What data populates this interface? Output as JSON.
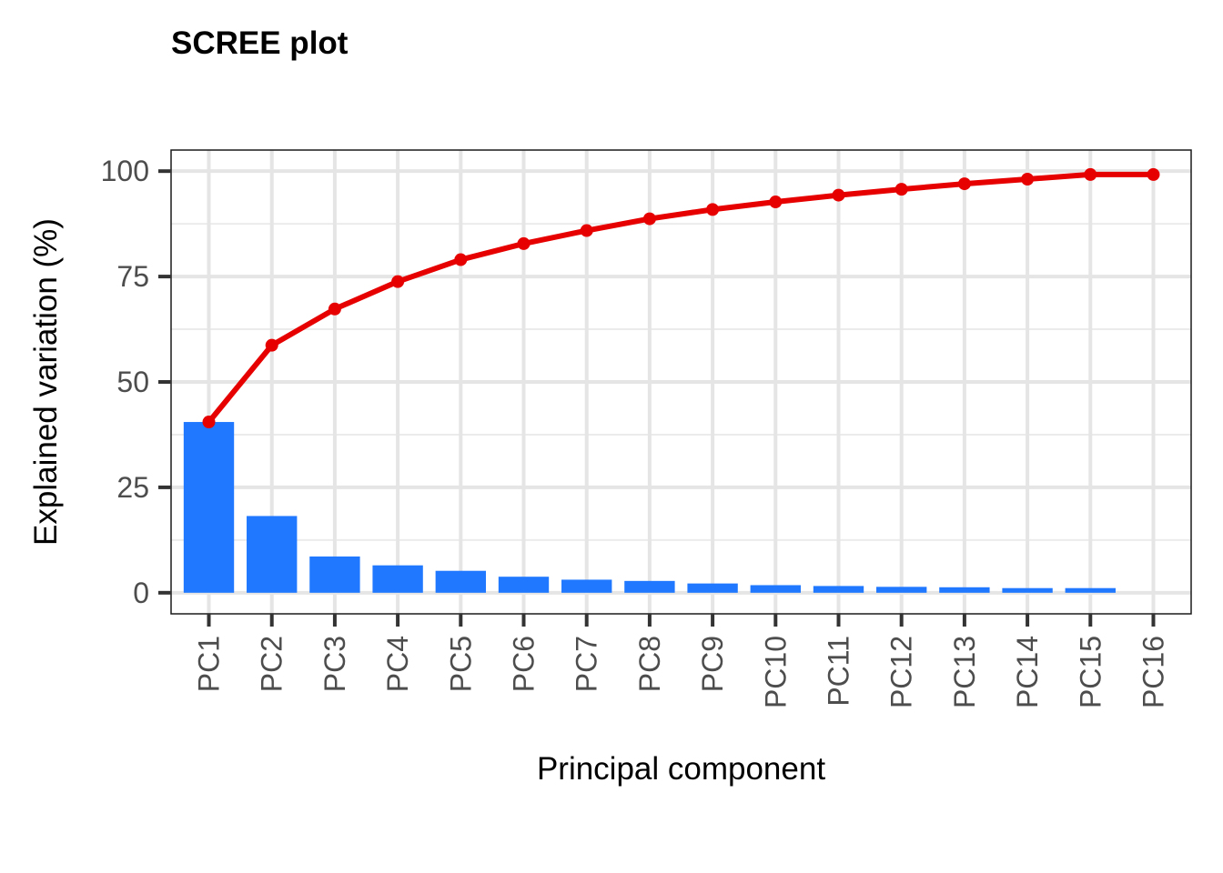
{
  "chart_data": {
    "type": "bar",
    "title": "SCREE plot",
    "xlabel": "Principal component",
    "ylabel": "Explained variation (%)",
    "categories": [
      "PC1",
      "PC2",
      "PC3",
      "PC4",
      "PC5",
      "PC6",
      "PC7",
      "PC8",
      "PC9",
      "PC10",
      "PC11",
      "PC12",
      "PC13",
      "PC14",
      "PC15",
      "PC16"
    ],
    "series": [
      {
        "type": "bar",
        "values": [
          40.5,
          18.2,
          8.6,
          6.5,
          5.2,
          3.8,
          3.1,
          2.8,
          2.2,
          1.8,
          1.6,
          1.4,
          1.3,
          1.1,
          1.1,
          0.0
        ],
        "color": "#1f78ff"
      },
      {
        "type": "line",
        "values": [
          40.5,
          58.7,
          67.3,
          73.8,
          79.0,
          82.8,
          85.9,
          88.7,
          90.9,
          92.7,
          94.3,
          95.7,
          97.0,
          98.1,
          99.2,
          99.2
        ],
        "color": "#e60000"
      }
    ],
    "yticks": [
      0,
      25,
      50,
      75,
      100
    ],
    "ylim": [
      -5,
      105
    ],
    "grid": true,
    "legend": "none"
  }
}
